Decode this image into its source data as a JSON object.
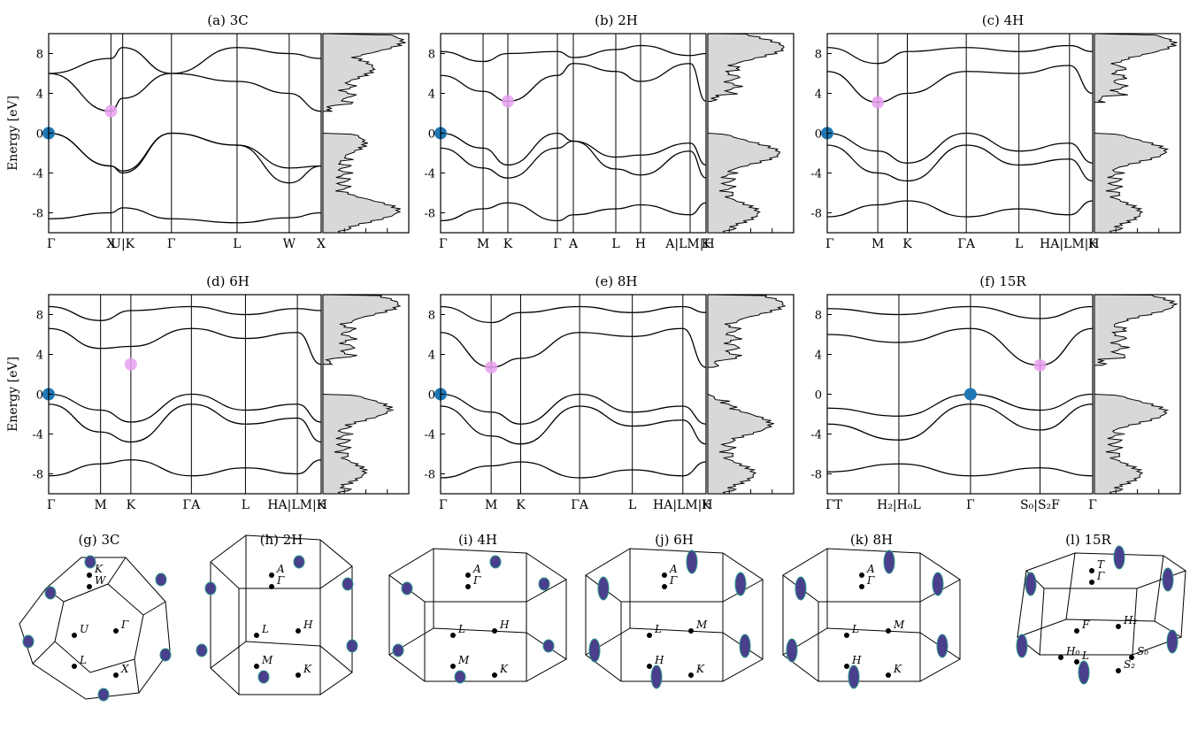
{
  "chart_data": [
    {
      "type": "line",
      "title": "(a) 3C",
      "ylabel": "Energy [eV]",
      "ylim": [
        -10,
        10
      ],
      "yticks": [
        -8,
        -4,
        0,
        4,
        8
      ],
      "kpath_labels": [
        "Γ",
        "X",
        "U|K",
        "Γ",
        "L",
        "W",
        "X"
      ],
      "kpath_positions": [
        0,
        0.37,
        0.44,
        0.73,
        1.12,
        1.43,
        1.62
      ],
      "vbm": {
        "k": "Γ",
        "energy": 0,
        "color": "#1f77b4"
      },
      "cbm": {
        "k": "X",
        "energy": 2.2,
        "color": "#e8a0f0"
      },
      "series": [
        {
          "x": [
            0,
            0.37,
            0.44,
            0.73,
            1.12,
            1.43,
            1.62
          ],
          "y": [
            0,
            -3.3,
            -4.0,
            0,
            -1.2,
            -3.5,
            -3.3
          ]
        },
        {
          "x": [
            0,
            0.37,
            0.44,
            0.73,
            1.12,
            1.43,
            1.62
          ],
          "y": [
            0,
            -3.3,
            -3.8,
            0,
            -1.2,
            -5.0,
            -3.3
          ]
        },
        {
          "x": [
            0,
            0.37,
            0.44,
            0.73,
            1.12,
            1.43,
            1.62
          ],
          "y": [
            -8.6,
            -8.0,
            -7.5,
            -8.6,
            -9.0,
            -8.5,
            -8.0
          ]
        },
        {
          "x": [
            0,
            0.37,
            0.44,
            0.73,
            1.12,
            1.43,
            1.62
          ],
          "y": [
            6.0,
            2.2,
            3.5,
            6.0,
            5.2,
            4.0,
            2.2
          ]
        },
        {
          "x": [
            0,
            0.37,
            0.44,
            0.73,
            1.12,
            1.43,
            1.62
          ],
          "y": [
            6.0,
            7.5,
            8.6,
            6.0,
            8.6,
            8.0,
            7.5
          ]
        }
      ],
      "dos_peaks": [
        {
          "energy": 9.2,
          "value": 0.95
        },
        {
          "energy": 6.5,
          "value": 0.6
        },
        {
          "energy": -1.0,
          "value": 0.5
        },
        {
          "energy": -7.8,
          "value": 0.9
        }
      ]
    },
    {
      "type": "line",
      "title": "(b) 2H",
      "ylim": [
        -10,
        10
      ],
      "yticks": [
        -8,
        -4,
        0,
        4,
        8
      ],
      "kpath_labels": [
        "Γ",
        "M",
        "K",
        "Γ",
        "A",
        "L",
        "H",
        "A|LM|H",
        "K"
      ],
      "kpath_positions": [
        0,
        0.48,
        0.76,
        1.32,
        1.5,
        1.98,
        2.26,
        2.82,
        3.0
      ],
      "vbm": {
        "k": "Γ",
        "energy": 0,
        "color": "#1f77b4"
      },
      "cbm": {
        "k": "K",
        "energy": 3.2,
        "color": "#e8a0f0"
      },
      "series": [
        {
          "x": [
            0,
            0.48,
            0.76,
            1.32,
            1.5,
            1.98,
            2.26,
            2.82,
            3.0
          ],
          "y": [
            0,
            -1.5,
            -3.2,
            0,
            -0.8,
            -2.4,
            -2.2,
            -1.0,
            -3.2
          ]
        },
        {
          "x": [
            0,
            0.48,
            0.76,
            1.32,
            1.5,
            1.98,
            2.26,
            2.82,
            3.0
          ],
          "y": [
            -1.5,
            -3.5,
            -4.5,
            -1.5,
            -0.8,
            -3.6,
            -4.2,
            -1.8,
            -4.5
          ]
        },
        {
          "x": [
            0,
            0.48,
            0.76,
            1.32,
            1.5,
            1.98,
            2.26,
            2.82,
            3.0
          ],
          "y": [
            -8.8,
            -7.6,
            -7.0,
            -8.8,
            -8.2,
            -7.6,
            -7.2,
            -8.2,
            -7.0
          ]
        },
        {
          "x": [
            0,
            0.48,
            0.76,
            1.32,
            1.5,
            1.98,
            2.26,
            2.82,
            3.0
          ],
          "y": [
            5.8,
            4.2,
            3.2,
            5.8,
            7.0,
            6.2,
            5.2,
            7.0,
            3.2
          ]
        },
        {
          "x": [
            0,
            0.48,
            0.76,
            1.32,
            1.5,
            1.98,
            2.26,
            2.82,
            3.0
          ],
          "y": [
            8.2,
            7.2,
            8.0,
            8.2,
            7.6,
            8.4,
            8.8,
            7.8,
            8.0
          ]
        }
      ],
      "dos_peaks": [
        {
          "energy": 8.6,
          "value": 0.9
        },
        {
          "energy": -2.0,
          "value": 0.85
        },
        {
          "energy": -8.0,
          "value": 0.6
        }
      ]
    },
    {
      "type": "line",
      "title": "(c) 4H",
      "ylim": [
        -10,
        10
      ],
      "yticks": [
        -8,
        -4,
        0,
        4,
        8
      ],
      "kpath_labels": [
        "Γ",
        "M",
        "K",
        "ΓA",
        "L",
        "HA|LM|H",
        "K"
      ],
      "kpath_positions": [
        0,
        0.48,
        0.76,
        1.32,
        1.82,
        2.3,
        2.52
      ],
      "vbm": {
        "k": "Γ",
        "energy": 0,
        "color": "#1f77b4"
      },
      "cbm": {
        "k": "M",
        "energy": 3.1,
        "color": "#e8a0f0"
      },
      "series": [
        {
          "x": [
            0,
            0.48,
            0.76,
            1.32,
            1.82,
            2.3,
            2.52
          ],
          "y": [
            0,
            -1.8,
            -3.0,
            0,
            -1.8,
            -1.0,
            -3.0
          ]
        },
        {
          "x": [
            0,
            0.48,
            0.76,
            1.32,
            1.82,
            2.3,
            2.52
          ],
          "y": [
            -1.2,
            -4.0,
            -4.8,
            -1.2,
            -3.2,
            -2.6,
            -4.8
          ]
        },
        {
          "x": [
            0,
            0.48,
            0.76,
            1.32,
            1.82,
            2.3,
            2.52
          ],
          "y": [
            -8.4,
            -7.2,
            -6.8,
            -8.4,
            -7.6,
            -8.2,
            -6.8
          ]
        },
        {
          "x": [
            0,
            0.48,
            0.76,
            1.32,
            1.82,
            2.3,
            2.52
          ],
          "y": [
            6.2,
            3.1,
            4.0,
            6.2,
            6.0,
            6.8,
            4.0
          ]
        },
        {
          "x": [
            0,
            0.48,
            0.76,
            1.32,
            1.82,
            2.3,
            2.52
          ],
          "y": [
            8.6,
            7.0,
            8.2,
            8.6,
            8.2,
            8.8,
            8.2
          ]
        }
      ],
      "dos_peaks": [
        {
          "energy": 9.0,
          "value": 0.95
        },
        {
          "energy": -1.8,
          "value": 0.85
        },
        {
          "energy": -8.0,
          "value": 0.55
        }
      ]
    },
    {
      "type": "line",
      "title": "(d) 6H",
      "ylabel": "Energy [eV]",
      "ylim": [
        -10,
        10
      ],
      "yticks": [
        -8,
        -4,
        0,
        4,
        8
      ],
      "kpath_labels": [
        "Γ",
        "M",
        "K",
        "ΓA",
        "L",
        "HA|LM|H",
        "K"
      ],
      "kpath_positions": [
        0,
        0.48,
        0.76,
        1.32,
        1.82,
        2.3,
        2.52
      ],
      "vbm": {
        "k": "Γ",
        "energy": 0,
        "color": "#1f77b4"
      },
      "cbm": {
        "k": "K",
        "energy": 3.0,
        "color": "#e8a0f0"
      },
      "series": [
        {
          "x": [
            0,
            0.48,
            0.76,
            1.32,
            1.82,
            2.3,
            2.52
          ],
          "y": [
            0,
            -1.6,
            -2.8,
            0,
            -1.6,
            -1.0,
            -2.8
          ]
        },
        {
          "x": [
            0,
            0.48,
            0.76,
            1.32,
            1.82,
            2.3,
            2.52
          ],
          "y": [
            -1.0,
            -3.8,
            -4.8,
            -1.0,
            -3.0,
            -2.4,
            -4.8
          ]
        },
        {
          "x": [
            0,
            0.48,
            0.76,
            1.32,
            1.82,
            2.3,
            2.52
          ],
          "y": [
            -8.2,
            -7.0,
            -6.6,
            -8.2,
            -7.4,
            -8.0,
            -6.6
          ]
        },
        {
          "x": [
            0,
            0.48,
            0.76,
            1.32,
            1.82,
            2.3,
            2.52
          ],
          "y": [
            6.6,
            4.6,
            4.8,
            6.6,
            5.6,
            6.2,
            3.0
          ]
        },
        {
          "x": [
            0,
            0.48,
            0.76,
            1.32,
            1.82,
            2.3,
            2.52
          ],
          "y": [
            8.8,
            7.4,
            8.4,
            8.8,
            8.0,
            8.6,
            8.4
          ]
        }
      ],
      "dos_peaks": [
        {
          "energy": 9.0,
          "value": 0.9
        },
        {
          "energy": -1.5,
          "value": 0.8
        },
        {
          "energy": -7.8,
          "value": 0.5
        }
      ]
    },
    {
      "type": "line",
      "title": "(e) 8H",
      "ylim": [
        -10,
        10
      ],
      "yticks": [
        -8,
        -4,
        0,
        4,
        8
      ],
      "kpath_labels": [
        "Γ",
        "M",
        "K",
        "ΓA",
        "L",
        "HA|LM|H",
        "K"
      ],
      "kpath_positions": [
        0,
        0.48,
        0.76,
        1.32,
        1.82,
        2.3,
        2.52
      ],
      "vbm": {
        "k": "Γ",
        "energy": 0,
        "color": "#1f77b4"
      },
      "cbm": {
        "k": "M",
        "energy": 2.7,
        "color": "#e8a0f0"
      },
      "series": [
        {
          "x": [
            0,
            0.48,
            0.76,
            1.32,
            1.82,
            2.3,
            2.52
          ],
          "y": [
            0,
            -1.8,
            -3.0,
            0,
            -1.8,
            -1.2,
            -3.0
          ]
        },
        {
          "x": [
            0,
            0.48,
            0.76,
            1.32,
            1.82,
            2.3,
            2.52
          ],
          "y": [
            -1.2,
            -4.2,
            -5.0,
            -1.2,
            -3.2,
            -2.6,
            -5.0
          ]
        },
        {
          "x": [
            0,
            0.48,
            0.76,
            1.32,
            1.82,
            2.3,
            2.52
          ],
          "y": [
            -8.4,
            -7.2,
            -6.8,
            -8.4,
            -7.6,
            -8.2,
            -6.8
          ]
        },
        {
          "x": [
            0,
            0.48,
            0.76,
            1.32,
            1.82,
            2.3,
            2.52
          ],
          "y": [
            6.2,
            2.7,
            3.6,
            6.2,
            5.8,
            6.6,
            2.7
          ]
        },
        {
          "x": [
            0,
            0.48,
            0.76,
            1.32,
            1.82,
            2.3,
            2.52
          ],
          "y": [
            8.8,
            7.2,
            8.2,
            8.8,
            8.2,
            8.8,
            8.2
          ]
        }
      ],
      "dos_peaks": [
        {
          "energy": 9.0,
          "value": 0.9
        },
        {
          "energy": -3.0,
          "value": 0.75
        },
        {
          "energy": -8.0,
          "value": 0.55
        }
      ]
    },
    {
      "type": "line",
      "title": "(f) 15R",
      "ylim": [
        -10,
        10
      ],
      "yticks": [
        -8,
        -4,
        0,
        4,
        8
      ],
      "kpath_labels": [
        "ΓT",
        "H₂|H₀L",
        "Γ",
        "S₀|S₂F",
        "Γ"
      ],
      "kpath_positions": [
        0,
        0.68,
        1.36,
        2.02,
        2.52
      ],
      "vbm": {
        "k": "Γ",
        "energy": 0,
        "color": "#1f77b4"
      },
      "cbm": {
        "k": "F",
        "energy": 2.9,
        "color": "#e8a0f0"
      },
      "series": [
        {
          "x": [
            0,
            0.68,
            1.36,
            2.02,
            2.52
          ],
          "y": [
            -1.4,
            -2.2,
            0,
            -1.6,
            0
          ]
        },
        {
          "x": [
            0,
            0.68,
            1.36,
            2.02,
            2.52
          ],
          "y": [
            -3.0,
            -4.6,
            -1.0,
            -3.6,
            -1.0
          ]
        },
        {
          "x": [
            0,
            0.68,
            1.36,
            2.02,
            2.52
          ],
          "y": [
            -7.8,
            -7.0,
            -8.2,
            -7.4,
            -8.2
          ]
        },
        {
          "x": [
            0,
            0.68,
            1.36,
            2.02,
            2.52
          ],
          "y": [
            6.0,
            5.2,
            6.6,
            2.9,
            6.6
          ]
        },
        {
          "x": [
            0,
            0.68,
            1.36,
            2.02,
            2.52
          ],
          "y": [
            8.6,
            8.0,
            8.8,
            7.6,
            8.8
          ]
        }
      ],
      "dos_peaks": [
        {
          "energy": 9.0,
          "value": 0.95
        },
        {
          "energy": -1.8,
          "value": 0.85
        },
        {
          "energy": -8.0,
          "value": 0.55
        }
      ]
    }
  ],
  "brillouin_zones": [
    {
      "title": "(g) 3C",
      "points": [
        "K",
        "W",
        "U",
        "Γ",
        "L",
        "X"
      ]
    },
    {
      "title": "(h) 2H",
      "points": [
        "A",
        "Γ",
        "L",
        "H",
        "M",
        "K"
      ]
    },
    {
      "title": "(i) 4H",
      "points": [
        "A",
        "Γ",
        "L",
        "H",
        "M",
        "K"
      ]
    },
    {
      "title": "(j) 6H",
      "points": [
        "A",
        "Γ",
        "L",
        "M",
        "H",
        "K"
      ]
    },
    {
      "title": "(k) 8H",
      "points": [
        "A",
        "Γ",
        "L",
        "M",
        "H",
        "K"
      ]
    },
    {
      "title": "(l) 15R",
      "points": [
        "T",
        "Γ",
        "F",
        "H₂",
        "L",
        "S₂",
        "H₀",
        "S₀"
      ]
    }
  ],
  "colors": {
    "line": "#000000",
    "vbm": "#1f77b4",
    "cbm": "#e8a0f0",
    "dos_fill": "#d8d8d8",
    "pocket": "#4a3f8c",
    "pocket_edge": "#2a9a8a"
  }
}
